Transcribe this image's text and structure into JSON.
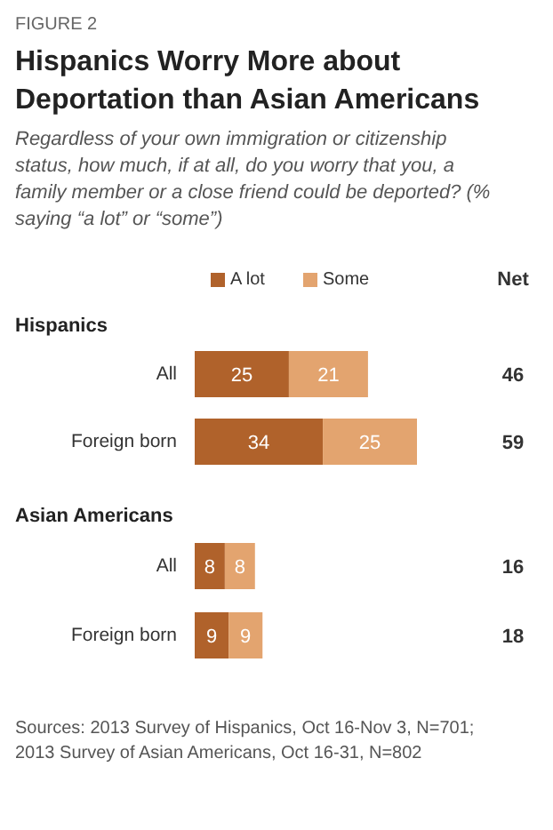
{
  "chart_data": {
    "type": "bar",
    "orientation": "horizontal",
    "stacked": true,
    "data_labels": true,
    "legend": "top",
    "grid": false,
    "title": "Hispanics Worry More about Deportation than Asian Americans",
    "subtitle": "Regardless of your own immigration or citizenship status, how much, if at all, do you worry that you, a family member or a close friend could be deported? (% saying “a lot” or “some”)",
    "categories": [
      "All",
      "Foreign born",
      "All",
      "Foreign born"
    ],
    "series": [
      {
        "name": "A lot",
        "color": "#b0622b",
        "values": [
          25,
          34,
          8,
          9
        ]
      },
      {
        "name": "Some",
        "color": "#e3a46f",
        "values": [
          21,
          25,
          8,
          9
        ]
      }
    ],
    "annotations": [
      "FIGURE 2",
      "Hispanics",
      "Asian Americans",
      "Net",
      "Sources: 2013 Survey of Hispanics, Oct 16-Nov 3, N=701; 2013 Survey of Asian Americans, Oct 16-31, N=802",
      "46",
      "59",
      "16",
      "18"
    ]
  }
}
